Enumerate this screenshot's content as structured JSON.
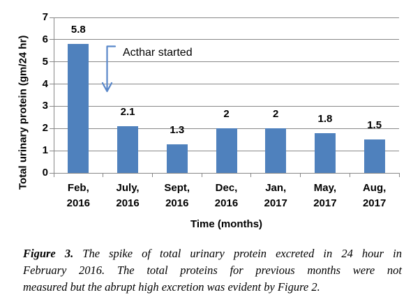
{
  "chart_data": {
    "type": "bar",
    "categories": [
      "Feb, 2016",
      "July, 2016",
      "Sept, 2016",
      "Dec, 2016",
      "Jan, 2017",
      "May, 2017",
      "Aug, 2017"
    ],
    "category_line1": [
      "Feb,",
      "July,",
      "Sept,",
      "Dec,",
      "Jan,",
      "May,",
      "Aug,"
    ],
    "category_line2": [
      "2016",
      "2016",
      "2016",
      "2016",
      "2017",
      "2017",
      "2017"
    ],
    "values": [
      5.8,
      2.1,
      1.3,
      2,
      2,
      1.8,
      1.5
    ],
    "data_labels": [
      "5.8",
      "2.1",
      "1.3",
      "2",
      "2",
      "1.8",
      "1.5"
    ],
    "title": "",
    "xlabel": "Time (months)",
    "ylabel": "Total urinary protein (gm/24 hr)",
    "ylim": [
      0,
      7
    ],
    "yticks": [
      0,
      1,
      2,
      3,
      4,
      5,
      6,
      7
    ],
    "grid": true,
    "legend": "none",
    "bar_color": "#4F81BD",
    "grid_color": "#878787",
    "annotation": {
      "text": "Acthar started",
      "arrow_color": "#5987C9"
    }
  },
  "caption": {
    "prefix": "Figure 3.",
    "line1": " The spike of total urinary protein excreted in 24 hour in",
    "line2": "February 2016. The total proteins for previous months were not",
    "line3": "measured but the abrupt high excretion was evident by Figure 2."
  }
}
